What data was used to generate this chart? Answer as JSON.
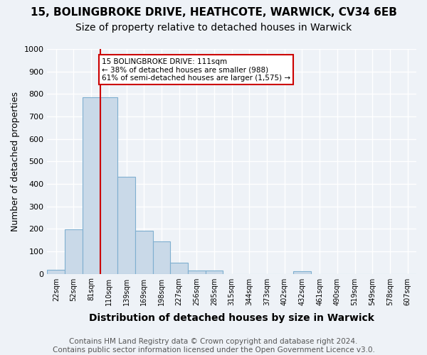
{
  "title1": "15, BOLINGBROKE DRIVE, HEATHCOTE, WARWICK, CV34 6EB",
  "title2": "Size of property relative to detached houses in Warwick",
  "xlabel": "Distribution of detached houses by size in Warwick",
  "ylabel": "Number of detached properties",
  "footnote": "Contains HM Land Registry data © Crown copyright and database right 2024.\nContains public sector information licensed under the Open Government Licence v3.0.",
  "bin_labels": [
    "22sqm",
    "52sqm",
    "81sqm",
    "110sqm",
    "139sqm",
    "169sqm",
    "198sqm",
    "227sqm",
    "256sqm",
    "285sqm",
    "315sqm",
    "344sqm",
    "373sqm",
    "402sqm",
    "432sqm",
    "461sqm",
    "490sqm",
    "519sqm",
    "549sqm",
    "578sqm",
    "607sqm"
  ],
  "bar_values": [
    18,
    196,
    785,
    785,
    432,
    192,
    143,
    48,
    14,
    14,
    0,
    0,
    0,
    0,
    10,
    0,
    0,
    0,
    0,
    0,
    0
  ],
  "bar_color": "#c9d9e8",
  "bar_edge_color": "#7fafd0",
  "property_line_x": 2.5,
  "property_line_color": "#cc0000",
  "annotation_text": "15 BOLINGBROKE DRIVE: 111sqm\n← 38% of detached houses are smaller (988)\n61% of semi-detached houses are larger (1,575) →",
  "annotation_box_color": "#ffffff",
  "annotation_box_edge_color": "#cc0000",
  "ylim": [
    0,
    1000
  ],
  "yticks": [
    0,
    100,
    200,
    300,
    400,
    500,
    600,
    700,
    800,
    900,
    1000
  ],
  "background_color": "#eef2f7",
  "plot_bg_color": "#eef2f7",
  "grid_color": "#ffffff",
  "title1_fontsize": 11,
  "title2_fontsize": 10,
  "xlabel_fontsize": 10,
  "ylabel_fontsize": 9,
  "footnote_fontsize": 7.5
}
